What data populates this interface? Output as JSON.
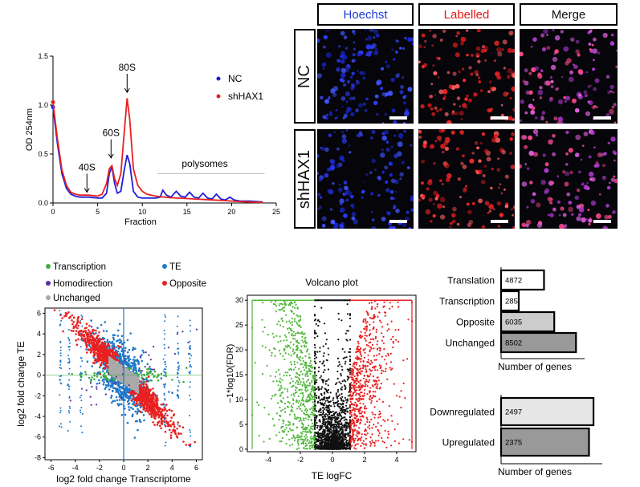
{
  "profile": {
    "chart_data": {
      "type": "line",
      "xlabel": "Fraction",
      "ylabel": "OD 254nm",
      "xlim": [
        0,
        25
      ],
      "ylim": [
        0,
        1.5
      ],
      "xticks": [
        "0",
        "5",
        "10",
        "15",
        "20",
        "25"
      ],
      "yticks": [
        "0.0",
        "0.5",
        "1.0",
        "1.5"
      ],
      "annotations": [
        "40S",
        "60S",
        "80S",
        "polysomes"
      ],
      "series": [
        {
          "name": "NC",
          "color": "#1f1fd6",
          "x": [
            0,
            0.5,
            1,
            1.5,
            2,
            2.5,
            3,
            3.5,
            4,
            4.5,
            5,
            5.5,
            6,
            6.3,
            6.6,
            6.9,
            7.2,
            7.6,
            8,
            8.3,
            8.6,
            9,
            9.5,
            10,
            10.5,
            11,
            11.5,
            12,
            12.3,
            12.7,
            13.2,
            13.8,
            14.3,
            14.8,
            15.3,
            15.8,
            16.3,
            16.8,
            17.3,
            17.8,
            18.3,
            18.8,
            19.3,
            19.8,
            20.3,
            21,
            22,
            23.5
          ],
          "y": [
            0.98,
            0.6,
            0.3,
            0.15,
            0.09,
            0.07,
            0.06,
            0.06,
            0.06,
            0.055,
            0.05,
            0.05,
            0.1,
            0.3,
            0.37,
            0.2,
            0.1,
            0.12,
            0.35,
            0.49,
            0.4,
            0.12,
            0.06,
            0.05,
            0.05,
            0.05,
            0.05,
            0.06,
            0.13,
            0.08,
            0.06,
            0.12,
            0.07,
            0.06,
            0.11,
            0.06,
            0.05,
            0.1,
            0.05,
            0.04,
            0.09,
            0.04,
            0.03,
            0.06,
            0.03,
            0.02,
            0.02,
            0.01
          ]
        },
        {
          "name": "shHAX1",
          "color": "#e82020",
          "x": [
            0,
            0.5,
            1,
            1.5,
            2,
            2.5,
            3,
            3.5,
            4,
            4.5,
            5,
            5.5,
            6,
            6.3,
            6.6,
            6.9,
            7.2,
            7.6,
            8,
            8.3,
            8.6,
            9,
            9.5,
            10,
            10.5,
            11,
            11.5,
            12,
            12.5,
            13,
            14,
            15,
            16,
            17,
            18,
            19,
            20,
            21,
            22,
            23.5
          ],
          "y": [
            1.03,
            0.65,
            0.34,
            0.18,
            0.11,
            0.09,
            0.08,
            0.08,
            0.08,
            0.075,
            0.07,
            0.09,
            0.2,
            0.35,
            0.38,
            0.25,
            0.18,
            0.3,
            0.75,
            1.07,
            0.85,
            0.35,
            0.18,
            0.12,
            0.09,
            0.08,
            0.07,
            0.065,
            0.06,
            0.055,
            0.05,
            0.045,
            0.04,
            0.035,
            0.03,
            0.025,
            0.02,
            0.015,
            0.01,
            0.005
          ]
        }
      ]
    }
  },
  "microscopy": {
    "columns": [
      "Hoechst",
      "Labelled",
      "Merge"
    ],
    "column_colors": [
      "#1f3ad6",
      "#e01818",
      "#000000"
    ],
    "rows": [
      "NC",
      "shHAX1"
    ]
  },
  "scatter": {
    "legend": [
      "Transcription",
      "TE",
      "Homodirection",
      "Opposite",
      "Unchanged"
    ],
    "legend_colors": [
      "#3fae3f",
      "#1f78c8",
      "#5a2d9e",
      "#e82020",
      "#aaaaaa"
    ],
    "chart_data": {
      "type": "scatter",
      "xlabel": "log2 fold change Transcriptome",
      "ylabel": "log2 fold change TE",
      "xlim": [
        -6.5,
        6.5
      ],
      "ylim": [
        -8.2,
        6.5
      ],
      "xticks": [
        "-6",
        "-4",
        "-2",
        "0",
        "2",
        "4",
        "6"
      ],
      "yticks": [
        "6",
        "4",
        "2",
        "0",
        "-2",
        "-4",
        "-6",
        "-8"
      ]
    }
  },
  "volcano": {
    "chart_data": {
      "type": "scatter",
      "title": "Volcano plot",
      "xlabel": "TE logFC",
      "ylabel": "−1*log10(FDR)",
      "xlim": [
        -5.3,
        5.2
      ],
      "ylim": [
        -0.5,
        31
      ],
      "xticks": [
        "-4",
        "-2",
        "0",
        "2",
        "4"
      ],
      "yticks": [
        "0",
        "5",
        "10",
        "15",
        "20",
        "25",
        "30"
      ]
    }
  },
  "bars_top": {
    "chart_data": {
      "type": "bar",
      "orientation": "horizontal",
      "categories": [
        "Translation",
        "Transcription",
        "Opposite",
        "Unchanged"
      ],
      "values": [
        4872,
        285,
        6035,
        8502
      ],
      "value_labels": [
        "4872",
        "285",
        "6035",
        "8502"
      ],
      "colors": [
        "#ffffff",
        "#ffffff",
        "#cccccc",
        "#999999"
      ],
      "xlabel": "Number of genes",
      "xlim": [
        0,
        8750
      ]
    }
  },
  "bars_bottom": {
    "chart_data": {
      "type": "bar",
      "orientation": "horizontal",
      "categories": [
        "Downregulated",
        "Upregulated"
      ],
      "values": [
        2497,
        2375
      ],
      "value_labels": [
        "2497",
        "2375"
      ],
      "colors": [
        "#e6e6e6",
        "#999999"
      ],
      "xlabel": "Number of genes",
      "xlim": [
        0,
        2560
      ]
    }
  }
}
